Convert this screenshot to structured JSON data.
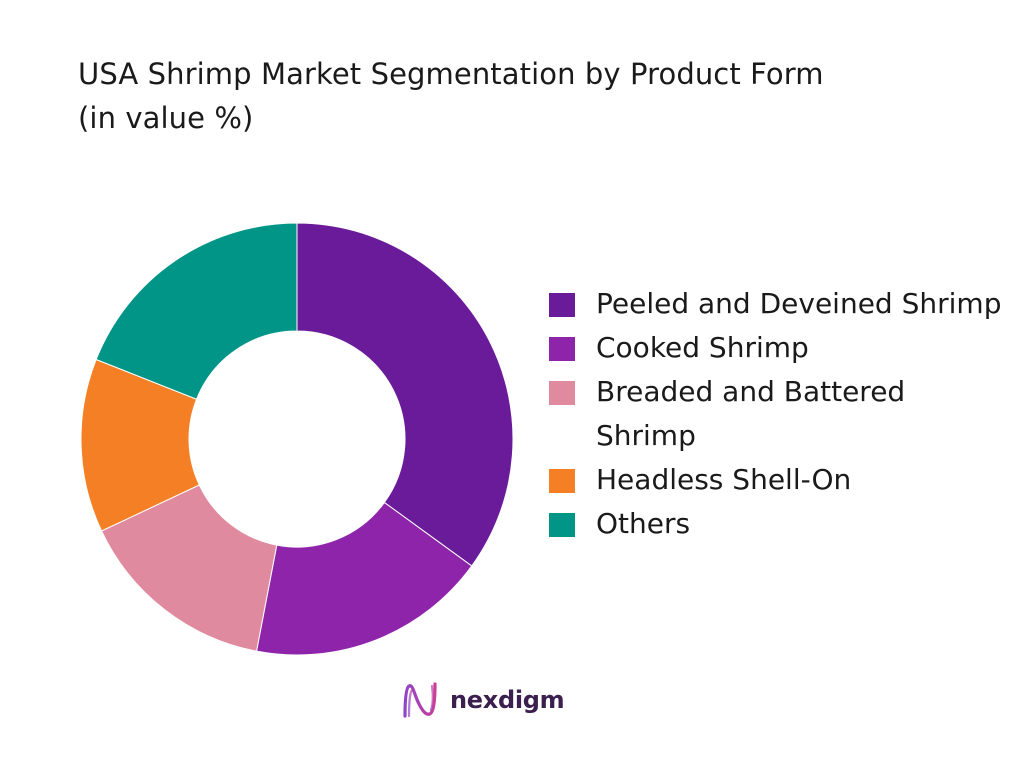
{
  "title_line1": "USA Shrimp Market Segmentation by Product Form",
  "title_line2": "(in value %)",
  "brand_name": "nexdigm",
  "chart_data": {
    "type": "pie",
    "title": "USA Shrimp Market Segmentation by Product Form (in value %)",
    "donut": true,
    "legend_position": "right",
    "categories": [
      "Peeled and Deveined Shrimp",
      "Cooked Shrimp",
      "Breaded and Battered Shrimp",
      "Headless Shell-On",
      "Others"
    ],
    "values": [
      35,
      18,
      15,
      13,
      19
    ],
    "colors": [
      "#6a1b9a",
      "#8e24aa",
      "#df8a9f",
      "#f57f25",
      "#009587"
    ]
  }
}
